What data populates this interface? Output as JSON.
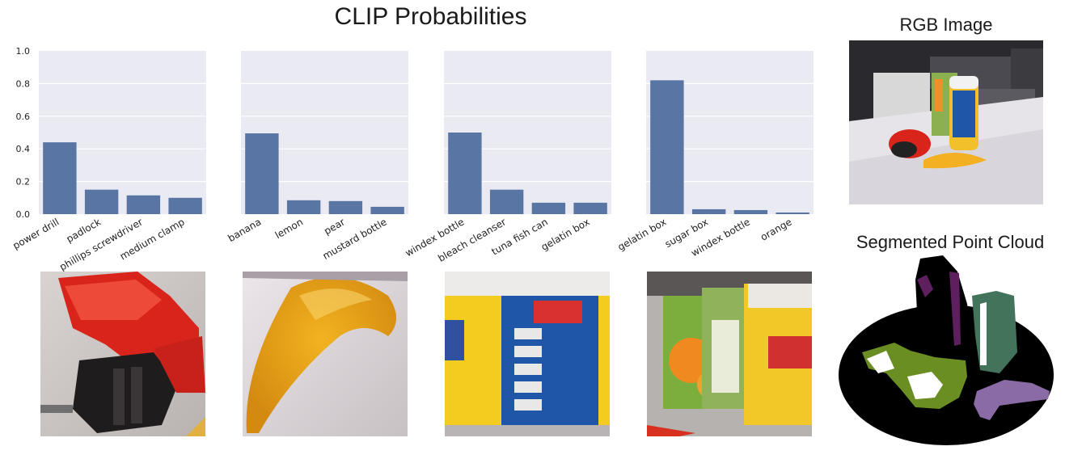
{
  "title": "CLIP Probabilities",
  "rgb_title": "RGB Image",
  "pointcloud_title": "Segmented Point Cloud",
  "colors": {
    "bar": "#5975a4",
    "plot_bg": "#eaeaf2",
    "grid": "#ffffff",
    "pc_olive": "#6b8e23",
    "pc_green": "#44735c",
    "pc_purple": "#8b6ba5",
    "pc_plum": "#5d1f5e"
  },
  "chart_data": [
    {
      "type": "bar",
      "categories": [
        "power drill",
        "padlock",
        "phillips screwdriver",
        "medium clamp"
      ],
      "values": [
        0.44,
        0.15,
        0.115,
        0.1
      ],
      "ylim": [
        0,
        1.0
      ],
      "yticks": [
        "0.0",
        "0.2",
        "0.4",
        "0.6",
        "0.8",
        "1.0"
      ],
      "grid": true,
      "show_yticks": true
    },
    {
      "type": "bar",
      "categories": [
        "banana",
        "lemon",
        "pear",
        "mustard bottle"
      ],
      "values": [
        0.495,
        0.085,
        0.08,
        0.045
      ],
      "ylim": [
        0,
        1.0
      ],
      "grid": true,
      "show_yticks": false
    },
    {
      "type": "bar",
      "categories": [
        "windex bottle",
        "bleach cleanser",
        "tuna fish can",
        "gelatin box"
      ],
      "values": [
        0.5,
        0.15,
        0.07,
        0.07
      ],
      "ylim": [
        0,
        1.0
      ],
      "grid": true,
      "show_yticks": false
    },
    {
      "type": "bar",
      "categories": [
        "gelatin box",
        "sugar box",
        "windex bottle",
        "orange"
      ],
      "values": [
        0.82,
        0.03,
        0.025,
        0.01
      ],
      "ylim": [
        0,
        1.0
      ],
      "grid": true,
      "show_yticks": false
    }
  ],
  "crops": [
    "power-drill-crop",
    "banana-crop",
    "windex-bottle-crop",
    "gelatin-box-crop"
  ]
}
